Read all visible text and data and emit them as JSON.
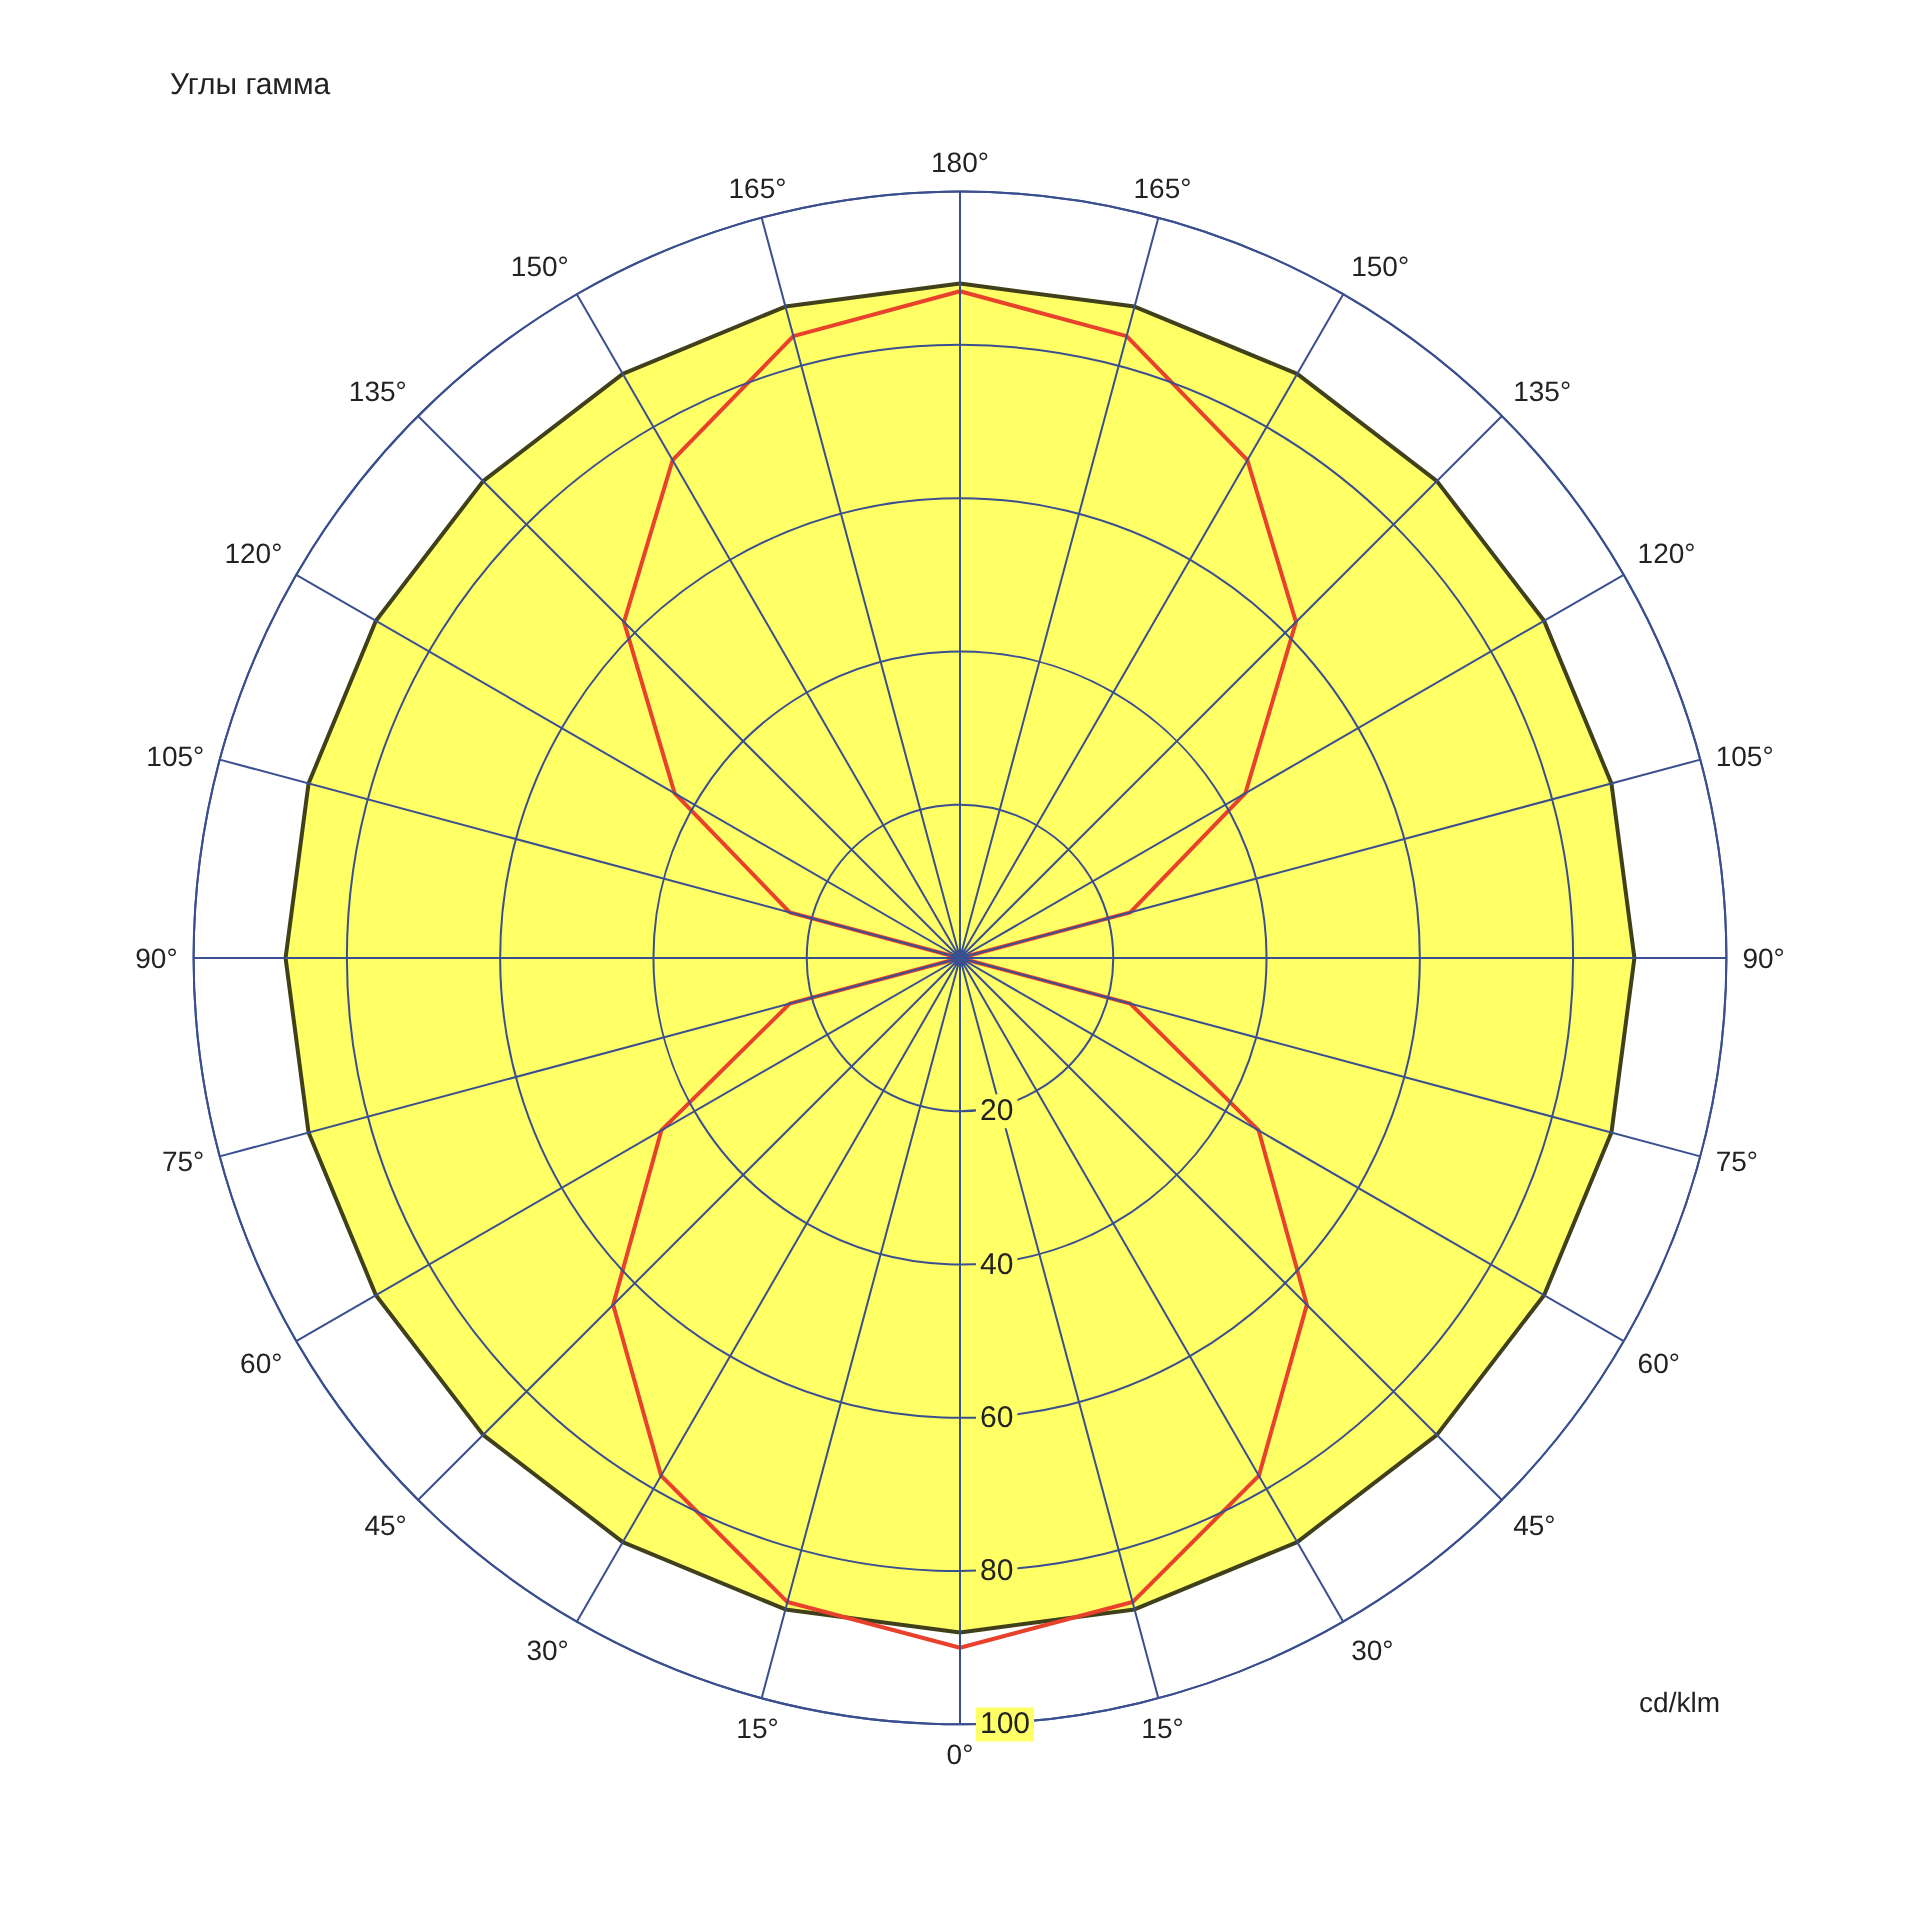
{
  "chart_data": {
    "type": "radar",
    "title": "Углы гамма",
    "ylabel": "cd/klm",
    "categories": [
      "180°",
      "165°",
      "150°",
      "135°",
      "120°",
      "105°",
      "90°",
      "75°",
      "60°",
      "45°",
      "30°",
      "15°",
      "0°",
      "15°",
      "30°",
      "45°",
      "60°",
      "75°",
      "90°",
      "105°",
      "120°",
      "135°",
      "150°",
      "165°"
    ],
    "series": [
      {
        "type": "area",
        "color": "#ffff66",
        "values": [
          88,
          88,
          88,
          88,
          88,
          88,
          88,
          88,
          88,
          88,
          88,
          88,
          88,
          88,
          88,
          88,
          88,
          88,
          88,
          88,
          88,
          88,
          88,
          88
        ]
      },
      {
        "color": "#e8412c",
        "values": [
          87,
          84,
          75,
          62,
          43,
          23,
          0,
          23,
          45,
          64,
          78,
          87,
          90,
          87,
          78,
          64,
          45,
          23,
          0,
          23,
          43,
          62,
          75,
          84
        ]
      }
    ],
    "ylim": [
      0,
      100
    ],
    "yticks": [
      20,
      40,
      60,
      80,
      100
    ],
    "grid": true,
    "marker": "none",
    "line_style": "solid"
  }
}
